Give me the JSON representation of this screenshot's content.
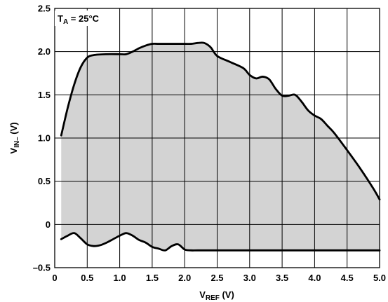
{
  "chart_data": {
    "type": "area",
    "xlabel": {
      "main": "V",
      "sub": "REF",
      "unit": " (V)"
    },
    "ylabel": {
      "main": "V",
      "sub": "IN–",
      "unit": " (V)"
    },
    "annotation": {
      "main": "T",
      "sub": "A",
      "rest": " = 25°C"
    },
    "xlim": [
      0,
      5.0
    ],
    "ylim": [
      -0.5,
      2.5
    ],
    "xticks": [
      "0",
      "0.5",
      "1.0",
      "1.5",
      "2.0",
      "2.5",
      "3.0",
      "3.5",
      "4.0",
      "4.5",
      "5.0"
    ],
    "yticks": [
      "–0.5",
      "0",
      "0.5",
      "1.0",
      "1.5",
      "2.0",
      "2.5"
    ],
    "grid": true,
    "fill_color": "#d3d3d3",
    "line_color": "#000000",
    "series": [
      {
        "x": [
          0.1,
          0.2,
          0.3,
          0.4,
          0.5,
          0.6,
          0.8,
          1.0,
          1.1,
          1.2,
          1.3,
          1.4,
          1.5,
          1.6,
          1.8,
          2.0,
          2.1,
          2.2,
          2.3,
          2.4,
          2.5,
          2.7,
          2.9,
          3.0,
          3.1,
          3.2,
          3.3,
          3.4,
          3.5,
          3.6,
          3.7,
          3.8,
          3.9,
          4.0,
          4.1,
          4.2,
          4.3,
          4.5,
          4.7,
          4.9,
          5.0
        ],
        "values": [
          1.03,
          1.35,
          1.62,
          1.82,
          1.93,
          1.96,
          1.97,
          1.97,
          1.97,
          2.0,
          2.04,
          2.07,
          2.09,
          2.09,
          2.09,
          2.09,
          2.09,
          2.1,
          2.1,
          2.05,
          1.95,
          1.88,
          1.81,
          1.73,
          1.69,
          1.71,
          1.68,
          1.57,
          1.49,
          1.49,
          1.5,
          1.42,
          1.32,
          1.26,
          1.22,
          1.14,
          1.06,
          0.86,
          0.65,
          0.42,
          0.29
        ]
      },
      {
        "x": [
          0.1,
          0.2,
          0.3,
          0.4,
          0.5,
          0.6,
          0.7,
          0.8,
          0.9,
          1.0,
          1.1,
          1.2,
          1.3,
          1.4,
          1.5,
          1.6,
          1.7,
          1.8,
          1.9,
          2.0,
          2.1,
          2.2,
          2.5,
          3.0,
          3.5,
          4.0,
          4.5,
          5.0
        ],
        "values": [
          -0.17,
          -0.13,
          -0.1,
          -0.16,
          -0.23,
          -0.25,
          -0.24,
          -0.21,
          -0.17,
          -0.13,
          -0.1,
          -0.13,
          -0.18,
          -0.21,
          -0.26,
          -0.28,
          -0.3,
          -0.25,
          -0.23,
          -0.29,
          -0.3,
          -0.3,
          -0.3,
          -0.3,
          -0.3,
          -0.3,
          -0.3,
          -0.3
        ]
      }
    ]
  }
}
